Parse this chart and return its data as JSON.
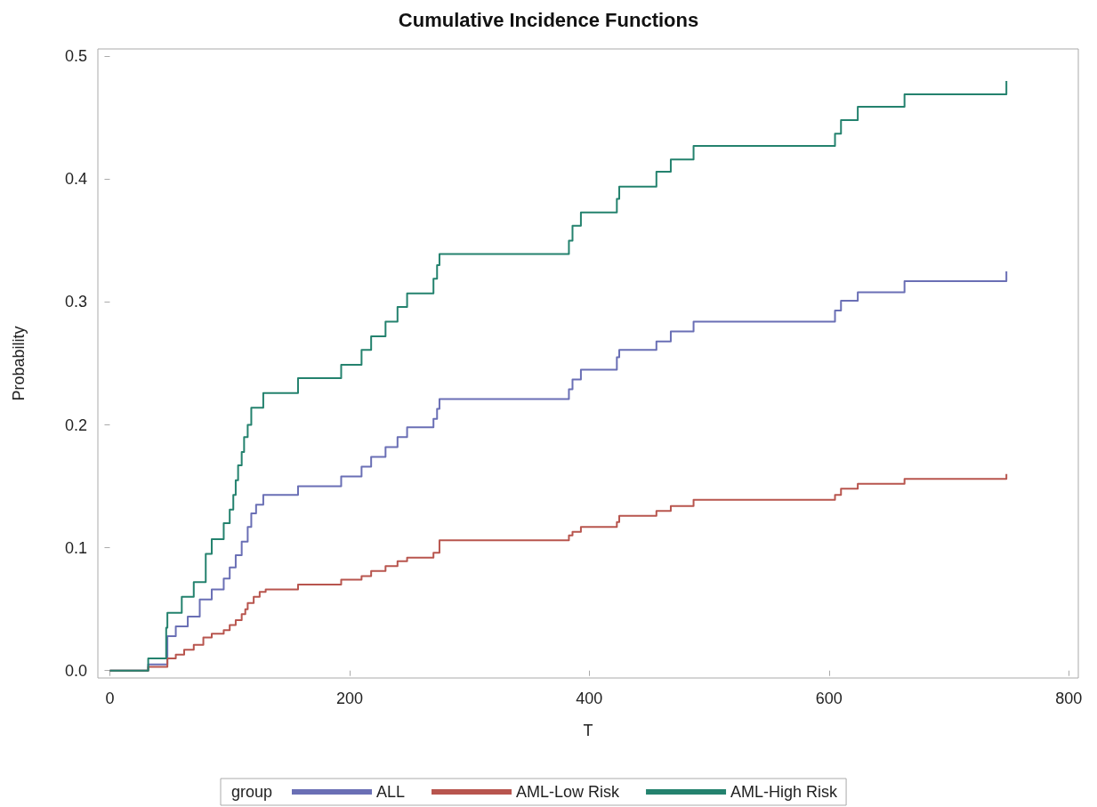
{
  "chart_data": {
    "type": "step",
    "title": "Cumulative Incidence Functions",
    "xlabel": "T",
    "ylabel": "Probability",
    "legend_title": "group",
    "legend": "bottom",
    "grid": false,
    "xlim": [
      -10,
      808
    ],
    "ylim": [
      -0.006,
      0.506
    ],
    "xticks": [
      0,
      200,
      400,
      600,
      800
    ],
    "yticks": [
      {
        "value": 0,
        "label": "0.0"
      },
      0.1,
      0.2,
      0.3,
      0.4,
      0.5
    ],
    "series": [
      {
        "name": "ALL",
        "color": "#6a6fb5",
        "x": [
          0,
          32,
          48,
          55,
          65,
          75,
          85,
          95,
          100,
          105,
          110,
          115,
          118,
          122,
          128,
          157,
          193,
          210,
          218,
          230,
          240,
          248,
          270,
          273,
          275,
          383,
          386,
          393,
          423,
          425,
          456,
          468,
          487,
          605,
          610,
          624,
          663,
          748,
          748
        ],
        "values": [
          0,
          0.005,
          0.028,
          0.036,
          0.044,
          0.058,
          0.066,
          0.075,
          0.084,
          0.094,
          0.105,
          0.117,
          0.128,
          0.135,
          0.143,
          0.15,
          0.158,
          0.166,
          0.174,
          0.182,
          0.19,
          0.198,
          0.205,
          0.213,
          0.221,
          0.229,
          0.237,
          0.245,
          0.255,
          0.261,
          0.268,
          0.276,
          0.284,
          0.293,
          0.301,
          0.308,
          0.317,
          0.317,
          0.325
        ]
      },
      {
        "name": "AML-Low Risk",
        "color": "#b8554e",
        "x": [
          0,
          32,
          48,
          55,
          62,
          70,
          78,
          85,
          95,
          100,
          105,
          110,
          113,
          115,
          120,
          125,
          130,
          157,
          193,
          210,
          218,
          230,
          240,
          248,
          270,
          275,
          383,
          386,
          393,
          423,
          425,
          456,
          468,
          487,
          605,
          610,
          624,
          663,
          748,
          748
        ],
        "values": [
          0,
          0.003,
          0.01,
          0.013,
          0.017,
          0.021,
          0.027,
          0.03,
          0.033,
          0.037,
          0.041,
          0.046,
          0.05,
          0.055,
          0.06,
          0.064,
          0.066,
          0.07,
          0.074,
          0.077,
          0.081,
          0.085,
          0.089,
          0.092,
          0.096,
          0.106,
          0.11,
          0.113,
          0.117,
          0.121,
          0.126,
          0.13,
          0.134,
          0.139,
          0.143,
          0.148,
          0.152,
          0.156,
          0.156,
          0.16
        ]
      },
      {
        "name": "AML-High Risk",
        "color": "#24826e",
        "x": [
          0,
          32,
          47,
          48,
          60,
          70,
          80,
          85,
          95,
          100,
          103,
          105,
          107,
          110,
          112,
          115,
          118,
          128,
          157,
          193,
          210,
          218,
          230,
          240,
          248,
          270,
          273,
          275,
          383,
          386,
          393,
          423,
          425,
          456,
          468,
          487,
          605,
          610,
          624,
          663,
          748,
          748
        ],
        "values": [
          0,
          0.01,
          0.035,
          0.047,
          0.06,
          0.072,
          0.095,
          0.107,
          0.12,
          0.131,
          0.143,
          0.155,
          0.167,
          0.178,
          0.19,
          0.2,
          0.214,
          0.226,
          0.238,
          0.249,
          0.261,
          0.272,
          0.284,
          0.296,
          0.307,
          0.319,
          0.33,
          0.339,
          0.35,
          0.362,
          0.373,
          0.384,
          0.394,
          0.406,
          0.416,
          0.427,
          0.437,
          0.448,
          0.459,
          0.469,
          0.469,
          0.48
        ]
      }
    ]
  }
}
